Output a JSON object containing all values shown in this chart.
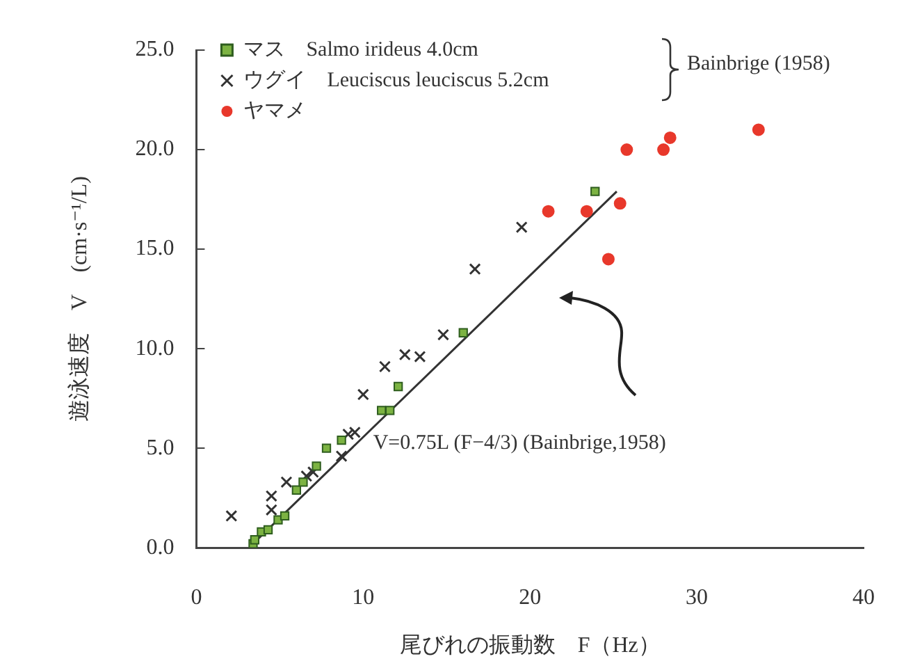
{
  "chart_data": {
    "type": "scatter",
    "xlabel": "尾びれの振動数　F（Hz）",
    "ylabel": "遊泳速度　V　(cm·s⁻¹/L)",
    "xlim": [
      0,
      40
    ],
    "xticks": [
      0,
      10,
      20,
      30,
      40
    ],
    "ylim": [
      0,
      25
    ],
    "yticks": [
      {
        "value": 0,
        "label": "0.0"
      },
      {
        "value": 5,
        "label": "5.0"
      },
      {
        "value": 10,
        "label": "10.0"
      },
      {
        "value": 15,
        "label": "15.0"
      },
      {
        "value": 20,
        "label": "20.0"
      },
      {
        "value": 25,
        "label": "25.0"
      }
    ],
    "grid": false,
    "legend": "top left",
    "series": [
      {
        "name": "マス　Salmo irideus 4.0cm",
        "color": "#7cb342",
        "marker": "square",
        "x": [
          3.4,
          3.5,
          3.9,
          4.3,
          4.9,
          5.3,
          6.0,
          6.4,
          7.2,
          7.8,
          8.7,
          11.1,
          11.6,
          12.1,
          16.0,
          23.9
        ],
        "values": [
          0.2,
          0.4,
          0.8,
          0.9,
          1.4,
          1.6,
          2.9,
          3.3,
          4.1,
          5.0,
          5.4,
          6.9,
          6.9,
          8.1,
          10.8,
          17.9
        ]
      },
      {
        "name": "ウグイ　Leuciscus leuciscus 5.2cm",
        "color": "#333333",
        "marker": "cross",
        "x": [
          2.1,
          4.5,
          4.5,
          5.4,
          6.6,
          7.0,
          8.7,
          9.1,
          9.5,
          10.0,
          11.3,
          12.5,
          13.4,
          14.8,
          16.7,
          19.5
        ],
        "values": [
          1.6,
          1.9,
          2.6,
          3.3,
          3.6,
          3.8,
          4.6,
          5.7,
          5.8,
          7.7,
          9.1,
          9.7,
          9.6,
          10.7,
          14.0,
          16.1
        ]
      },
      {
        "name": "ヤマメ",
        "color": "#e8382b",
        "marker": "circle",
        "x": [
          21.1,
          23.4,
          24.7,
          25.4,
          25.8,
          28.0,
          28.4,
          33.7
        ],
        "values": [
          16.9,
          16.9,
          14.5,
          17.3,
          20.0,
          20.0,
          20.6,
          21.0
        ]
      },
      {
        "type": "line",
        "color": "#333333",
        "marker": "none",
        "x": [
          3.4,
          25.2
        ],
        "values": [
          0.2,
          17.9
        ]
      }
    ],
    "annotations": [
      "V=0.75L (F−4/3) (Bainbrige,1958)",
      "Bainbrige (1958)"
    ]
  }
}
